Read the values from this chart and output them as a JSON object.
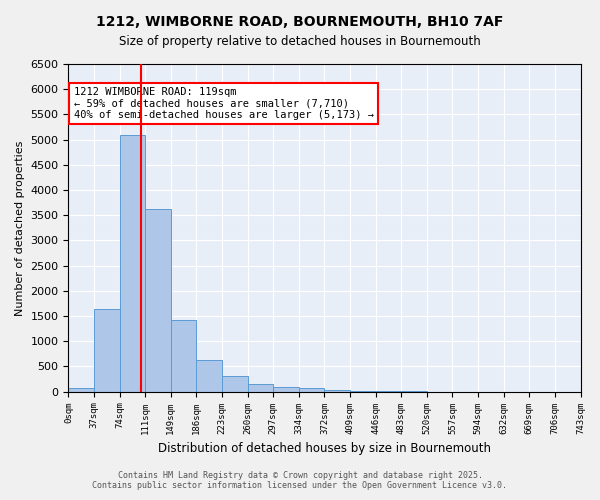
{
  "title": "1212, WIMBORNE ROAD, BOURNEMOUTH, BH10 7AF",
  "subtitle": "Size of property relative to detached houses in Bournemouth",
  "xlabel": "Distribution of detached houses by size in Bournemouth",
  "ylabel": "Number of detached properties",
  "footer_line1": "Contains HM Land Registry data © Crown copyright and database right 2025.",
  "footer_line2": "Contains public sector information licensed under the Open Government Licence v3.0.",
  "bins": [
    "0sqm",
    "37sqm",
    "74sqm",
    "111sqm",
    "149sqm",
    "186sqm",
    "223sqm",
    "260sqm",
    "297sqm",
    "334sqm",
    "372sqm",
    "409sqm",
    "446sqm",
    "483sqm",
    "520sqm",
    "557sqm",
    "594sqm",
    "632sqm",
    "669sqm",
    "706sqm",
    "743sqm"
  ],
  "bar_values": [
    75,
    1650,
    5100,
    3620,
    1420,
    620,
    305,
    150,
    90,
    65,
    40,
    20,
    10,
    5,
    3,
    2,
    1,
    1,
    0,
    0
  ],
  "bar_color": "#aec6e8",
  "bar_edge_color": "#5b9bd5",
  "background_color": "#e8eef7",
  "grid_color": "#ffffff",
  "annotation_text": "1212 WIMBORNE ROAD: 119sqm\n← 59% of detached houses are smaller (7,710)\n40% of semi-detached houses are larger (5,173) →",
  "annotation_box_color": "#ff0000",
  "vline_x": 2.85,
  "vline_color": "#ff0000",
  "ylim": [
    0,
    6500
  ],
  "yticks": [
    0,
    500,
    1000,
    1500,
    2000,
    2500,
    3000,
    3500,
    4000,
    4500,
    5000,
    5500,
    6000,
    6500
  ]
}
